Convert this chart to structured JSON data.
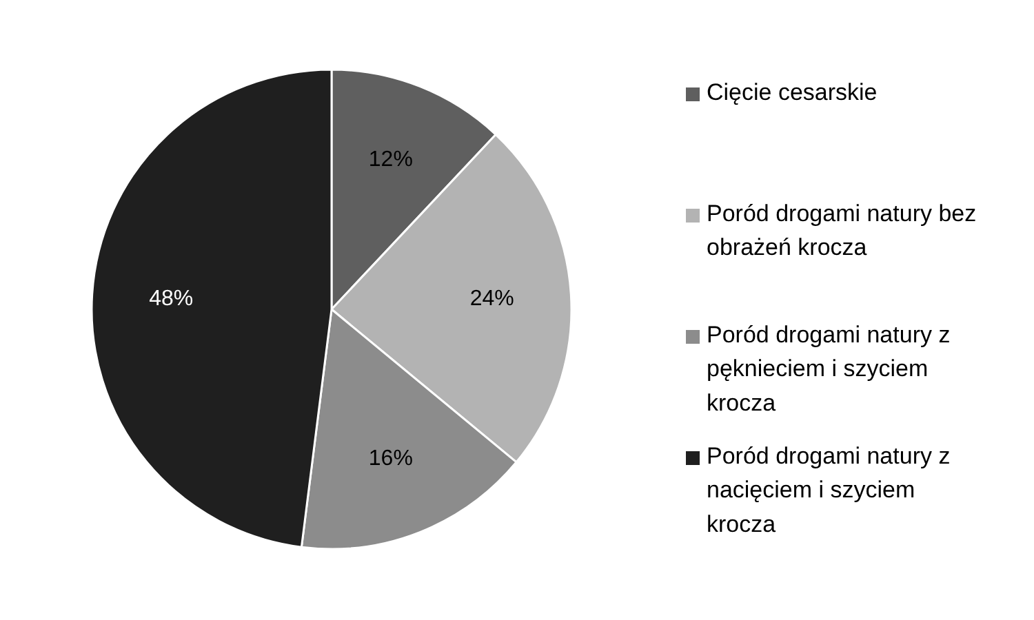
{
  "chart_data": {
    "type": "pie",
    "categories": [
      "Cięcie cesarskie",
      "Poród drogami natury bez obrażeń krocza",
      "Poród drogami natury z pęknieciem i szyciem krocza",
      "Poród drogami natury z nacięciem i szyciem krocza"
    ],
    "values": [
      12,
      24,
      16,
      48
    ],
    "colors": [
      "#5f5f5f",
      "#b3b3b3",
      "#8c8c8c",
      "#1f1f1f"
    ],
    "value_labels": [
      "12%",
      "24%",
      "16%",
      "48%"
    ],
    "legend": "right"
  }
}
